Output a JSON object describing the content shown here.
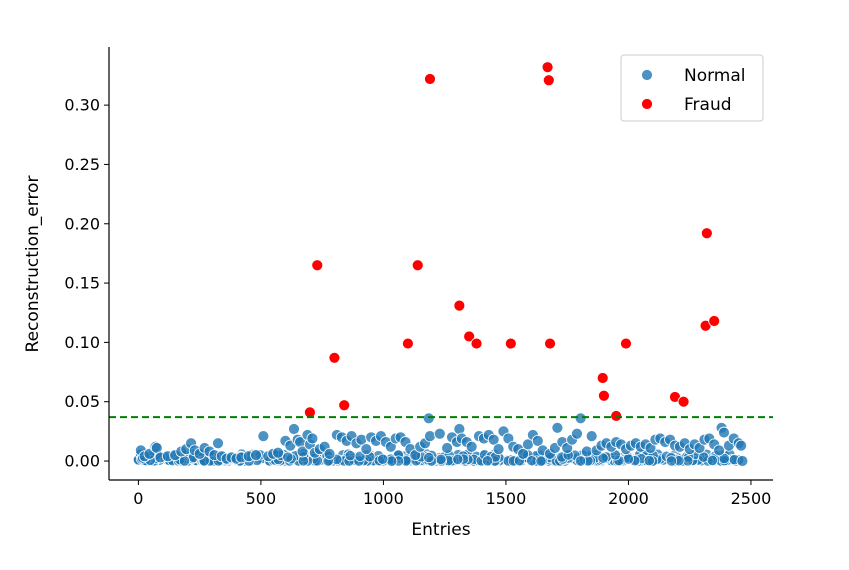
{
  "chart_data": {
    "type": "scatter",
    "title": "",
    "xlabel": "Entries",
    "ylabel": "Reconstruction_error",
    "xlim": [
      -120,
      2590
    ],
    "ylim": [
      -0.016,
      0.349
    ],
    "xticks": [
      0,
      500,
      1000,
      1500,
      2000,
      2500
    ],
    "xtick_labels": [
      "0",
      "500",
      "1000",
      "1500",
      "2000",
      "2500"
    ],
    "yticks": [
      0.0,
      0.05,
      0.1,
      0.15,
      0.2,
      0.25,
      0.3
    ],
    "ytick_labels": [
      "0.00",
      "0.05",
      "0.10",
      "0.15",
      "0.20",
      "0.25",
      "0.30"
    ],
    "threshold": {
      "y": 0.037,
      "color": "#008000",
      "style": "dashed"
    },
    "legend": {
      "position": "top-right",
      "entries": [
        "Normal",
        "Fraud"
      ]
    },
    "grid": false,
    "colors": {
      "Normal": "#1f77b4",
      "Fraud": "#ff0000"
    },
    "series": [
      {
        "name": "Normal",
        "color": "#1f77b4",
        "points": [
          [
            10,
            0.009
          ],
          [
            25,
            0.004
          ],
          [
            45,
            0.006
          ],
          [
            70,
            0.012
          ],
          [
            75,
            0.011
          ],
          [
            90,
            0.003
          ],
          [
            120,
            0.004
          ],
          [
            150,
            0.005
          ],
          [
            175,
            0.008
          ],
          [
            195,
            0.01
          ],
          [
            215,
            0.015
          ],
          [
            230,
            0.009
          ],
          [
            250,
            0.006
          ],
          [
            270,
            0.011
          ],
          [
            290,
            0.008
          ],
          [
            310,
            0.005
          ],
          [
            325,
            0.015
          ],
          [
            340,
            0.004
          ],
          [
            360,
            0.002
          ],
          [
            380,
            0.003
          ],
          [
            400,
            0.002
          ],
          [
            420,
            0.003
          ],
          [
            450,
            0.004
          ],
          [
            480,
            0.005
          ],
          [
            510,
            0.021
          ],
          [
            530,
            0.004
          ],
          [
            550,
            0.006
          ],
          [
            570,
            0.007
          ],
          [
            600,
            0.017
          ],
          [
            620,
            0.013
          ],
          [
            635,
            0.027
          ],
          [
            650,
            0.018
          ],
          [
            660,
            0.016
          ],
          [
            670,
            0.008
          ],
          [
            690,
            0.022
          ],
          [
            700,
            0.014
          ],
          [
            710,
            0.019
          ],
          [
            720,
            0.007
          ],
          [
            740,
            0.01
          ],
          [
            760,
            0.012
          ],
          [
            780,
            0.006
          ],
          [
            810,
            0.022
          ],
          [
            830,
            0.02
          ],
          [
            850,
            0.017
          ],
          [
            870,
            0.021
          ],
          [
            890,
            0.015
          ],
          [
            910,
            0.018
          ],
          [
            930,
            0.01
          ],
          [
            950,
            0.02
          ],
          [
            970,
            0.017
          ],
          [
            990,
            0.021
          ],
          [
            1010,
            0.016
          ],
          [
            1030,
            0.012
          ],
          [
            1050,
            0.019
          ],
          [
            1070,
            0.02
          ],
          [
            1090,
            0.016
          ],
          [
            1110,
            0.01
          ],
          [
            1130,
            0.005
          ],
          [
            1150,
            0.012
          ],
          [
            1170,
            0.015
          ],
          [
            1185,
            0.036
          ],
          [
            1190,
            0.021
          ],
          [
            1230,
            0.023
          ],
          [
            1260,
            0.011
          ],
          [
            1280,
            0.02
          ],
          [
            1300,
            0.016
          ],
          [
            1310,
            0.027
          ],
          [
            1320,
            0.019
          ],
          [
            1340,
            0.016
          ],
          [
            1360,
            0.012
          ],
          [
            1390,
            0.021
          ],
          [
            1410,
            0.019
          ],
          [
            1430,
            0.022
          ],
          [
            1450,
            0.018
          ],
          [
            1470,
            0.01
          ],
          [
            1490,
            0.025
          ],
          [
            1510,
            0.019
          ],
          [
            1530,
            0.012
          ],
          [
            1550,
            0.01
          ],
          [
            1570,
            0.006
          ],
          [
            1590,
            0.014
          ],
          [
            1610,
            0.022
          ],
          [
            1630,
            0.017
          ],
          [
            1650,
            0.009
          ],
          [
            1680,
            0.006
          ],
          [
            1700,
            0.011
          ],
          [
            1710,
            0.028
          ],
          [
            1730,
            0.016
          ],
          [
            1750,
            0.011
          ],
          [
            1770,
            0.018
          ],
          [
            1790,
            0.023
          ],
          [
            1805,
            0.036
          ],
          [
            1830,
            0.008
          ],
          [
            1850,
            0.021
          ],
          [
            1870,
            0.009
          ],
          [
            1890,
            0.013
          ],
          [
            1910,
            0.015
          ],
          [
            1930,
            0.012
          ],
          [
            1950,
            0.016
          ],
          [
            1970,
            0.014
          ],
          [
            1990,
            0.01
          ],
          [
            2010,
            0.013
          ],
          [
            2030,
            0.015
          ],
          [
            2050,
            0.012
          ],
          [
            2070,
            0.014
          ],
          [
            2090,
            0.011
          ],
          [
            2110,
            0.018
          ],
          [
            2130,
            0.019
          ],
          [
            2150,
            0.016
          ],
          [
            2170,
            0.018
          ],
          [
            2190,
            0.013
          ],
          [
            2210,
            0.012
          ],
          [
            2230,
            0.015
          ],
          [
            2250,
            0.01
          ],
          [
            2270,
            0.014
          ],
          [
            2290,
            0.011
          ],
          [
            2310,
            0.018
          ],
          [
            2330,
            0.019
          ],
          [
            2350,
            0.014
          ],
          [
            2370,
            0.009
          ],
          [
            2380,
            0.028
          ],
          [
            2390,
            0.024
          ],
          [
            2410,
            0.013
          ],
          [
            2430,
            0.019
          ],
          [
            2450,
            0.015
          ],
          [
            2460,
            0.013
          ],
          [
            2465,
            0.0
          ]
        ]
      },
      {
        "name": "Fraud",
        "color": "#ff0000",
        "points": [
          [
            700,
            0.041
          ],
          [
            730,
            0.165
          ],
          [
            800,
            0.087
          ],
          [
            840,
            0.047
          ],
          [
            1100,
            0.099
          ],
          [
            1140,
            0.165
          ],
          [
            1190,
            0.322
          ],
          [
            1310,
            0.131
          ],
          [
            1350,
            0.105
          ],
          [
            1380,
            0.099
          ],
          [
            1520,
            0.099
          ],
          [
            1670,
            0.332
          ],
          [
            1675,
            0.321
          ],
          [
            1680,
            0.099
          ],
          [
            1895,
            0.07
          ],
          [
            1900,
            0.055
          ],
          [
            1950,
            0.038
          ],
          [
            1990,
            0.099
          ],
          [
            2190,
            0.054
          ],
          [
            2225,
            0.05
          ],
          [
            2315,
            0.114
          ],
          [
            2320,
            0.192
          ],
          [
            2350,
            0.118
          ]
        ]
      }
    ]
  }
}
